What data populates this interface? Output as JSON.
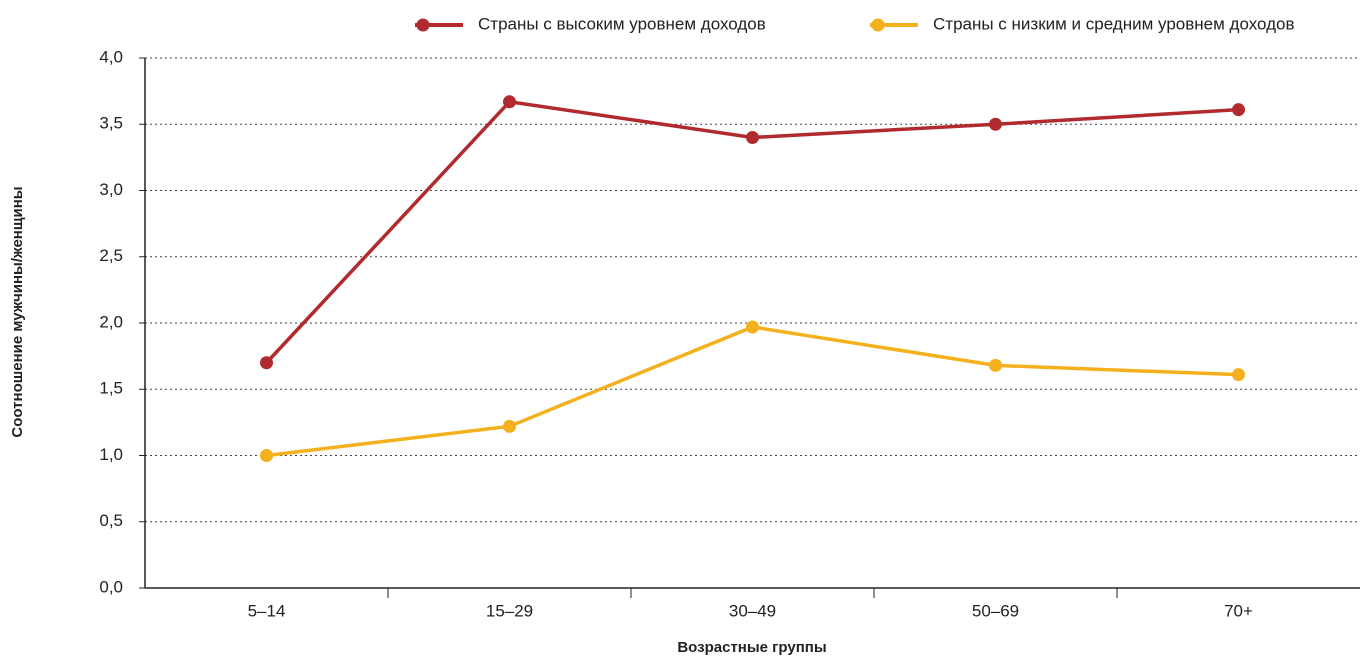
{
  "chart_data": {
    "type": "line",
    "xlabel": "Возрастные группы",
    "ylabel": "Соотношение мужчины/женщины",
    "categories": [
      "5–14",
      "15–29",
      "30–49",
      "50–69",
      "70+"
    ],
    "series": [
      {
        "name": "Страны с высоким уровнем доходов",
        "color": "#b02a2e",
        "values": [
          1.7,
          3.67,
          3.4,
          3.5,
          3.61
        ]
      },
      {
        "name": "Страны с низким и средним уровнем доходов",
        "color": "#f5b01e",
        "values": [
          1.0,
          1.22,
          1.97,
          1.68,
          1.61
        ]
      }
    ],
    "ylim": [
      0,
      4
    ],
    "yticks": [
      {
        "value": 0,
        "label": "0,0"
      },
      {
        "value": 0.5,
        "label": "0,5"
      },
      {
        "value": 1,
        "label": "1,0"
      },
      {
        "value": 1.5,
        "label": "1,5"
      },
      {
        "value": 2,
        "label": "2,0"
      },
      {
        "value": 2.5,
        "label": "2,5"
      },
      {
        "value": 3,
        "label": "3,0"
      },
      {
        "value": 3.5,
        "label": "3,5"
      },
      {
        "value": 4,
        "label": "4,0"
      }
    ],
    "grid": true,
    "legend": "top"
  }
}
